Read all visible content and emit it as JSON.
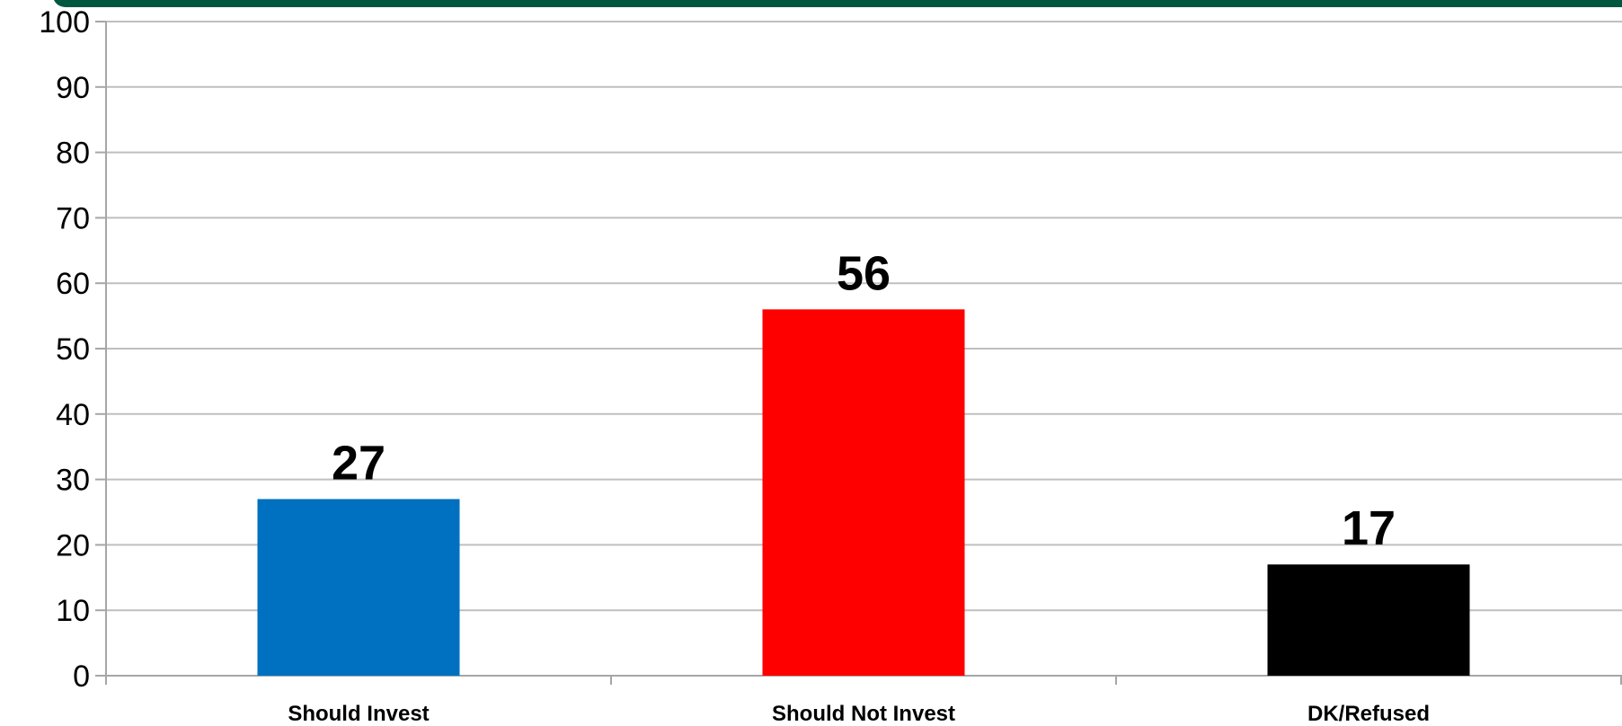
{
  "chart_data": {
    "type": "bar",
    "title": "",
    "xlabel": "",
    "ylabel": "",
    "categories": [
      "Should Invest",
      "Should Not Invest",
      "DK/Refused"
    ],
    "values": [
      27,
      56,
      17
    ],
    "data_labels": [
      "27",
      "56",
      "17"
    ],
    "colors": [
      "#0070c0",
      "#ff0000",
      "#000000"
    ],
    "ylim": [
      0,
      100
    ],
    "yticks": [
      0,
      10,
      20,
      30,
      40,
      50,
      60,
      70,
      80,
      90,
      100
    ],
    "grid": true,
    "legend": "none"
  },
  "theme": {
    "header_bar_color": "#00573f",
    "gridline_color": "#bfbfbf",
    "axis_color": "#a6a6a6"
  }
}
